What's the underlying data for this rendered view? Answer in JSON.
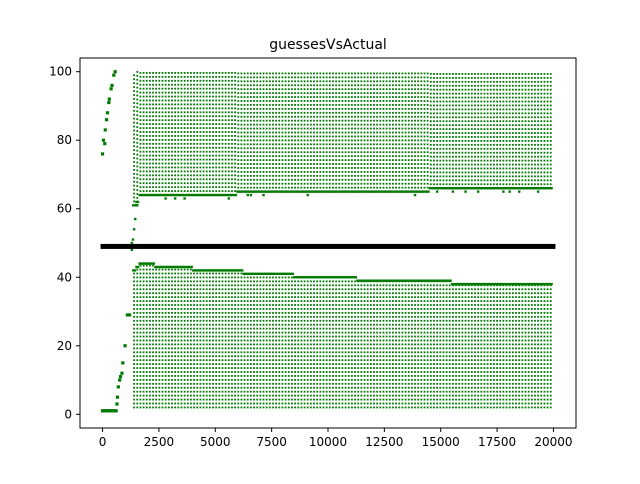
{
  "chart_data": {
    "type": "scatter",
    "title": "guessesVsActual",
    "xlabel": "",
    "ylabel": "",
    "xlim": [
      -1000,
      21000
    ],
    "ylim": [
      -4,
      104
    ],
    "x_ticks": [
      0,
      2500,
      5000,
      7500,
      10000,
      12500,
      15000,
      17500,
      20000
    ],
    "y_ticks": [
      0,
      20,
      40,
      60,
      80,
      100
    ],
    "grid": false,
    "legend": "none",
    "colors": {
      "guesses": "#007a00",
      "actual": "#000000"
    },
    "series": [
      {
        "role": "actual",
        "marker": "square",
        "x_range": [
          0,
          20000
        ],
        "y": 49
      },
      {
        "role": "guesses",
        "marker": "square",
        "early_points": [
          [
            0,
            76
          ],
          [
            40,
            80
          ],
          [
            100,
            79
          ],
          [
            120,
            83
          ],
          [
            180,
            86
          ],
          [
            220,
            88
          ],
          [
            280,
            91
          ],
          [
            300,
            92
          ],
          [
            380,
            95
          ],
          [
            420,
            96
          ],
          [
            500,
            99
          ],
          [
            560,
            100
          ],
          [
            0,
            1
          ],
          [
            100,
            1
          ],
          [
            200,
            1
          ],
          [
            300,
            1
          ],
          [
            400,
            1
          ],
          [
            500,
            1
          ],
          [
            600,
            1
          ],
          [
            640,
            3
          ],
          [
            660,
            5
          ],
          [
            700,
            8
          ],
          [
            760,
            10
          ],
          [
            800,
            11
          ],
          [
            860,
            12
          ],
          [
            900,
            15
          ],
          [
            1000,
            20
          ],
          [
            1100,
            29
          ],
          [
            1200,
            29
          ]
        ],
        "upper_band": {
          "x_range": [
            1400,
            20000
          ],
          "y_max": 100,
          "y_min_profile": [
            [
              1400,
              61
            ],
            [
              1700,
              64
            ],
            [
              3000,
              64
            ],
            [
              9000,
              65
            ],
            [
              20000,
              66
            ]
          ]
        },
        "lower_band": {
          "x_range": [
            1400,
            20000
          ],
          "y_min": 2,
          "y_max_profile": [
            [
              1300,
              41
            ],
            [
              1700,
              44
            ],
            [
              3000,
              43
            ],
            [
              5000,
              42
            ],
            [
              7500,
              41
            ],
            [
              9500,
              40
            ],
            [
              13000,
              39
            ],
            [
              17800,
              38
            ],
            [
              20000,
              38
            ]
          ]
        },
        "transition_points": [
          [
            1300,
            48
          ],
          [
            1300,
            50
          ],
          [
            1350,
            51
          ],
          [
            1400,
            54
          ],
          [
            1450,
            57
          ],
          [
            1500,
            61
          ]
        ]
      }
    ]
  }
}
